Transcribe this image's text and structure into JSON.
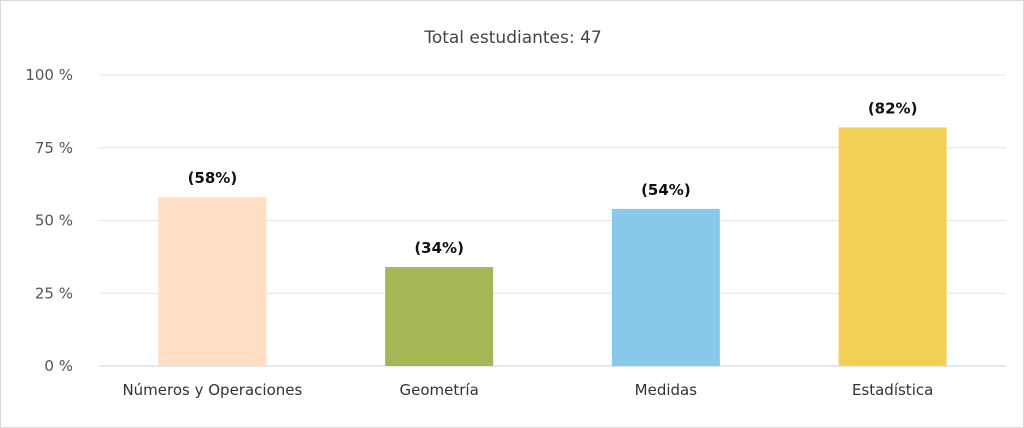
{
  "chart_data": {
    "type": "bar",
    "title": "Total estudiantes: 47",
    "categories": [
      "Números y Operaciones",
      "Geometría",
      "Medidas",
      "Estadística"
    ],
    "values": [
      58,
      34,
      54,
      82
    ],
    "data_labels": [
      "(58%)",
      "(34%)",
      "(54%)",
      "(82%)"
    ],
    "colors": [
      "#ffdec4",
      "#a3b855",
      "#89c9ec",
      "#f2cf55"
    ],
    "ylim": [
      0,
      100
    ],
    "yticks": [
      0,
      25,
      50,
      75,
      100
    ],
    "ytick_labels": [
      "0 %",
      "25 %",
      "50 %",
      "75 %",
      "100 %"
    ],
    "grid": true,
    "legend": "none"
  }
}
